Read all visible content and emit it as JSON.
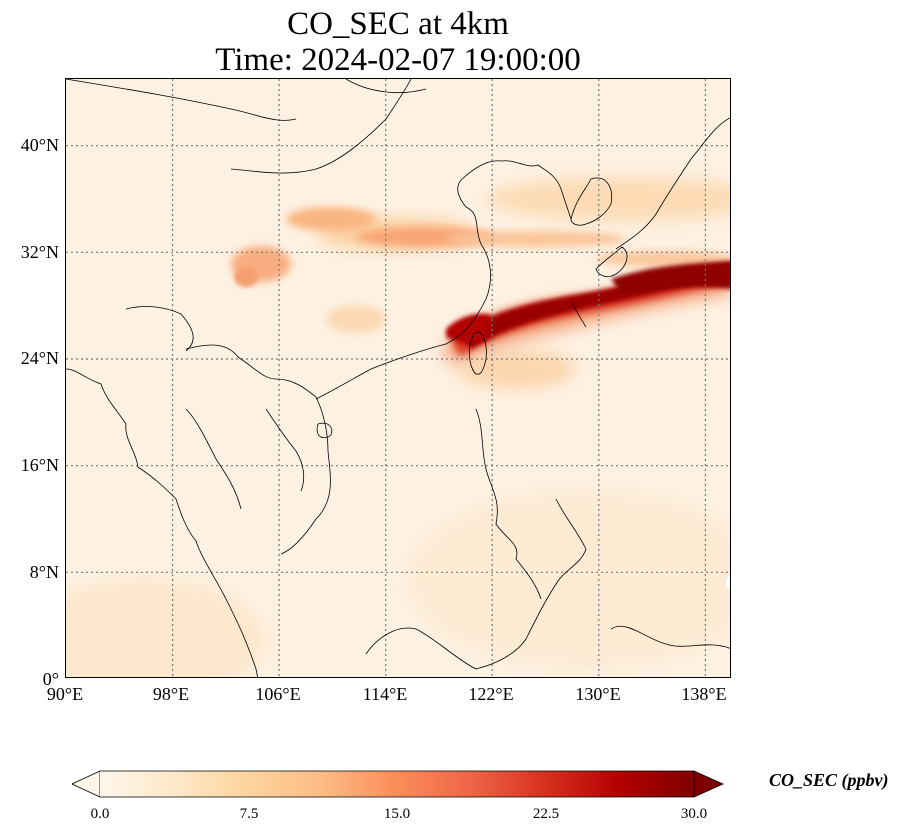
{
  "title": {
    "line1": "CO_SEC at 4km",
    "line2": "Time: 2024-02-07 19:00:00"
  },
  "map": {
    "projection": "PlateCarree",
    "extent": {
      "lon_min": 90,
      "lon_max": 140,
      "lat_min": 0,
      "lat_max": 45
    },
    "gridlines": "dotted",
    "lat_ticks": [
      "0°",
      "8°N",
      "16°N",
      "24°N",
      "32°N",
      "40°N"
    ],
    "lon_ticks": [
      "90°E",
      "98°E",
      "106°E",
      "114°E",
      "122°E",
      "130°E",
      "138°E"
    ]
  },
  "colorbar": {
    "label": "CO_SEC (ppbv)",
    "cmap": "OrRd",
    "ticks": [
      "0.0",
      "7.5",
      "15.0",
      "22.5",
      "30.0"
    ],
    "range": [
      0,
      30
    ],
    "extend": "both",
    "colors": [
      "#fff7ec",
      "#fee8c8",
      "#fdd49e",
      "#fdbb84",
      "#fc8d59",
      "#ef6548",
      "#d7301f",
      "#b30000",
      "#7f0000"
    ]
  }
}
